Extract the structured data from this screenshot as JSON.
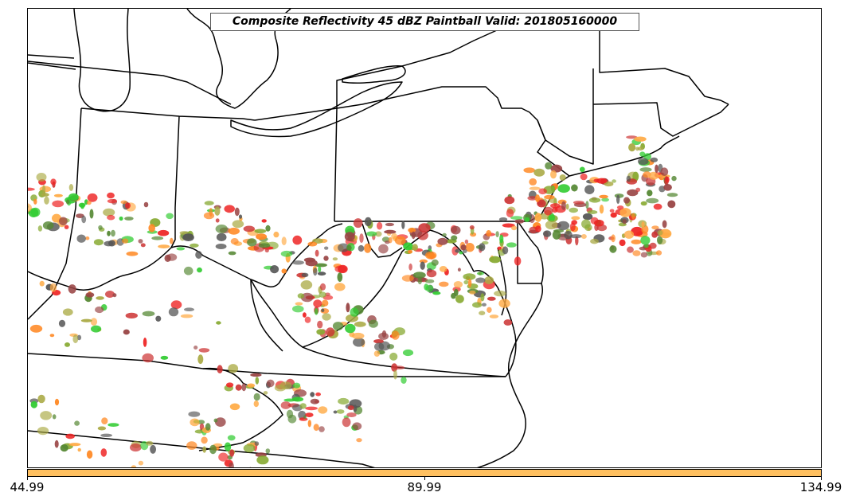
{
  "title": "Composite Reflectivity 45 dBZ Paintball Valid: 201805160000",
  "colorbar": {
    "color": "#ffc060",
    "ticks": [
      "44.99",
      "89.99",
      "134.99"
    ]
  },
  "member_colors": [
    "#ee2222",
    "#ff8822",
    "#ffaa44",
    "#33cc33",
    "#558833",
    "#994444",
    "#aaaa44",
    "#555555",
    "#cc3333",
    "#88aa33"
  ]
}
